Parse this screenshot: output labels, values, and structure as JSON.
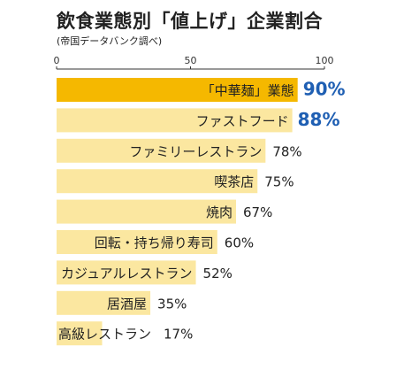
{
  "chart_data": {
    "type": "bar",
    "orientation": "horizontal",
    "title": "飲食業態別「値上げ」企業割合",
    "subtitle": "(帝国データバンク調べ)",
    "xlim": [
      0,
      100
    ],
    "ticks": [
      0,
      50,
      100
    ],
    "categories": [
      "「中華麺」業態",
      "ファストフード",
      "ファミリーレストラン",
      "喫茶店",
      "焼肉",
      "回転・持ち帰り寿司",
      "カジュアルレストラン",
      "居酒屋",
      "高級レストラン"
    ],
    "values": [
      90,
      88,
      78,
      75,
      67,
      60,
      52,
      35,
      17
    ],
    "value_labels": [
      "90%",
      "88%",
      "78%",
      "75%",
      "67%",
      "60%",
      "52%",
      "35%",
      "17%"
    ],
    "highlight_index": 0,
    "colors": {
      "highlight_bar": "#f5b800",
      "bar": "#fbe7a0",
      "highlight_value": "#1f5fb3",
      "value": "#222222",
      "axis": "#333333"
    }
  }
}
